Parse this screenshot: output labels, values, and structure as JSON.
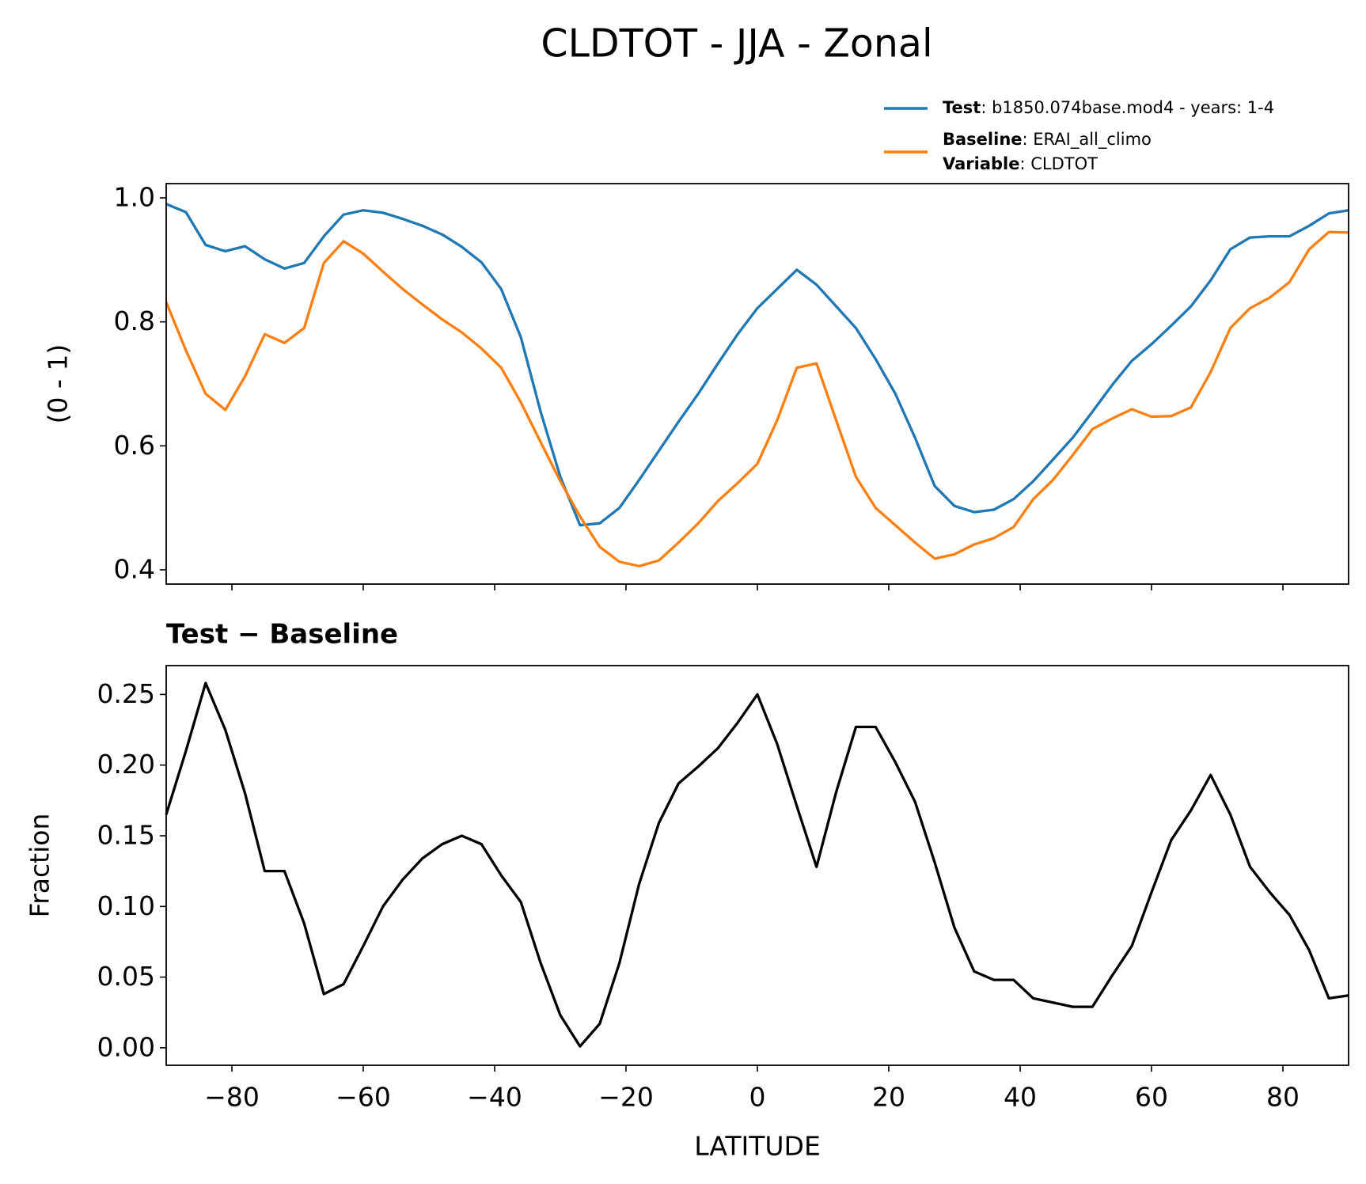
{
  "chart_data": [
    {
      "type": "line",
      "title": "CLDTOT - JJA - Zonal",
      "y_label": "(0 - 1)",
      "x": [
        -90,
        -87,
        -84,
        -81,
        -78,
        -75,
        -72,
        -69,
        -66,
        -63,
        -60,
        -57,
        -54,
        -51,
        -48,
        -45,
        -42,
        -39,
        -36,
        -33,
        -30,
        -27,
        -24,
        -21,
        -18,
        -15,
        -12,
        -9,
        -6,
        -3,
        0,
        3,
        6,
        9,
        12,
        15,
        18,
        21,
        24,
        27,
        30,
        33,
        36,
        39,
        42,
        45,
        48,
        51,
        54,
        57,
        60,
        63,
        66,
        69,
        72,
        75,
        78,
        81,
        84,
        87,
        90
      ],
      "series": [
        {
          "name": "Test: b1850.074base.mod4 - years: 1-4",
          "color": "#1f77b4",
          "values": [
            0.99,
            0.977,
            0.924,
            0.914,
            0.922,
            0.901,
            0.886,
            0.895,
            0.938,
            0.973,
            0.98,
            0.976,
            0.966,
            0.955,
            0.941,
            0.921,
            0.896,
            0.853,
            0.775,
            0.655,
            0.55,
            0.472,
            0.475,
            0.5,
            0.545,
            0.592,
            0.639,
            0.684,
            0.733,
            0.78,
            0.822,
            0.853,
            0.884,
            0.86,
            0.825,
            0.79,
            0.74,
            0.684,
            0.613,
            0.535,
            0.503,
            0.493,
            0.497,
            0.514,
            0.543,
            0.578,
            0.613,
            0.655,
            0.698,
            0.737,
            0.764,
            0.794,
            0.825,
            0.867,
            0.917,
            0.936,
            0.938,
            0.938,
            0.955,
            0.975,
            0.98
          ]
        },
        {
          "name": "Baseline: ERAI_all_climo",
          "color": "#ff7f0e",
          "values": [
            0.832,
            0.754,
            0.684,
            0.658,
            0.712,
            0.78,
            0.766,
            0.79,
            0.895,
            0.93,
            0.91,
            0.881,
            0.853,
            0.828,
            0.804,
            0.783,
            0.757,
            0.726,
            0.67,
            0.606,
            0.543,
            0.486,
            0.437,
            0.413,
            0.406,
            0.415,
            0.444,
            0.475,
            0.511,
            0.54,
            0.571,
            0.641,
            0.726,
            0.733,
            0.641,
            0.55,
            0.5,
            0.472,
            0.444,
            0.418,
            0.425,
            0.441,
            0.451,
            0.469,
            0.514,
            0.545,
            0.585,
            0.627,
            0.644,
            0.659,
            0.647,
            0.648,
            0.662,
            0.719,
            0.79,
            0.822,
            0.839,
            0.864,
            0.917,
            0.945,
            0.944
          ]
        }
      ],
      "legend_note": "Variable: CLDTOT",
      "xlim": [
        -90,
        90
      ],
      "xticks": [
        -80,
        -60,
        -40,
        -20,
        0,
        20,
        40,
        60,
        80
      ],
      "ylim": [
        0.377,
        1.023
      ],
      "yticks": [
        {
          "value": 1.0,
          "label": "1.0"
        },
        0.8,
        0.6,
        0.4
      ]
    },
    {
      "type": "line",
      "title": "Test − Baseline",
      "y_label": "Fraction",
      "x_label": "LATITUDE",
      "x": [
        -90,
        -87,
        -84,
        -81,
        -78,
        -75,
        -72,
        -69,
        -66,
        -63,
        -60,
        -57,
        -54,
        -51,
        -48,
        -45,
        -42,
        -39,
        -36,
        -33,
        -30,
        -27,
        -24,
        -21,
        -18,
        -15,
        -12,
        -9,
        -6,
        -3,
        0,
        3,
        6,
        9,
        12,
        15,
        18,
        21,
        24,
        27,
        30,
        33,
        36,
        39,
        42,
        45,
        48,
        51,
        54,
        57,
        60,
        63,
        66,
        69,
        72,
        75,
        78,
        81,
        84,
        87,
        90
      ],
      "series": [
        {
          "color": "#000000",
          "values": [
            0.165,
            0.21,
            0.258,
            0.225,
            0.18,
            0.125,
            0.125,
            0.088,
            0.038,
            0.045,
            0.072,
            0.1,
            0.119,
            0.134,
            0.144,
            0.15,
            0.144,
            0.122,
            0.103,
            0.06,
            0.023,
            0.001,
            0.017,
            0.06,
            0.116,
            0.159,
            0.187,
            0.199,
            0.212,
            0.23,
            0.25,
            0.215,
            0.171,
            0.128,
            0.181,
            0.227,
            0.227,
            0.202,
            0.174,
            0.131,
            0.085,
            0.054,
            0.048,
            0.048,
            0.035,
            0.032,
            0.029,
            0.029,
            0.051,
            0.072,
            0.11,
            0.147,
            0.168,
            0.193,
            0.165,
            0.128,
            0.11,
            0.094,
            0.069,
            0.035,
            0.037
          ]
        }
      ],
      "xlim": [
        -90,
        90
      ],
      "xticks": [
        {
          "value": -80,
          "label": "−80"
        },
        {
          "value": -60,
          "label": "−60"
        },
        {
          "value": -40,
          "label": "−40"
        },
        {
          "value": -20,
          "label": "−20"
        },
        0,
        20,
        40,
        60,
        80
      ],
      "ylim": [
        -0.0124,
        0.2704
      ],
      "yticks": [
        0.25,
        {
          "value": 0.2,
          "label": "0.20"
        },
        0.15,
        {
          "value": 0.1,
          "label": "0.10"
        },
        0.05,
        {
          "value": 0,
          "label": "0.00"
        }
      ]
    }
  ]
}
